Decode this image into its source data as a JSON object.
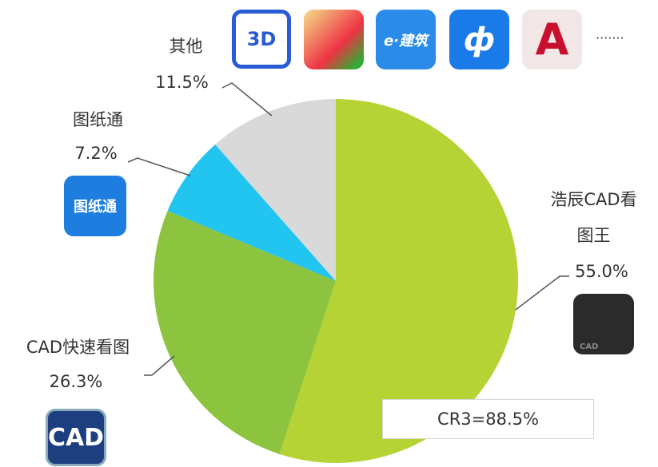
{
  "chart_data": {
    "type": "pie",
    "categories": [
      "浩辰CAD看图王",
      "CAD快速看图",
      "图纸通",
      "其他"
    ],
    "values": [
      55.0,
      26.3,
      7.2,
      11.5
    ],
    "value_labels": [
      "55.0%",
      "26.3%",
      "7.2%",
      "11.5%"
    ],
    "colors": [
      "#b5d334",
      "#8cc43f",
      "#22c4f0",
      "#d9d9d9"
    ],
    "annotation": "CR3=88.5%",
    "icon_texts": [
      "3D",
      "e·建筑",
      "图纸通",
      "CAD",
      "CAD"
    ],
    "more": "·······"
  }
}
